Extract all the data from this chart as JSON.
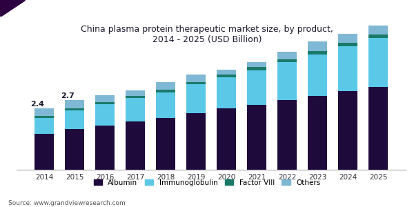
{
  "title": "China plasma protein therapeutic market size, by product,\n2014 - 2025 (USD Billion)",
  "years": [
    2014,
    2015,
    2016,
    2017,
    2018,
    2019,
    2020,
    2021,
    2022,
    2023,
    2024,
    2025
  ],
  "albumin": [
    1.4,
    1.58,
    1.72,
    1.88,
    2.02,
    2.2,
    2.38,
    2.52,
    2.7,
    2.88,
    3.05,
    3.22
  ],
  "immunoglobulin": [
    0.62,
    0.72,
    0.82,
    0.9,
    1.0,
    1.12,
    1.22,
    1.35,
    1.48,
    1.6,
    1.75,
    1.9
  ],
  "factor_viii": [
    0.07,
    0.08,
    0.08,
    0.09,
    0.09,
    0.1,
    0.11,
    0.12,
    0.12,
    0.13,
    0.14,
    0.15
  ],
  "others": [
    0.31,
    0.32,
    0.28,
    0.23,
    0.29,
    0.28,
    0.19,
    0.21,
    0.3,
    0.39,
    0.36,
    0.33
  ],
  "colors": {
    "albumin": "#1f0a3c",
    "immunoglobulin": "#5bc8e8",
    "factor_viii": "#1a7a6a",
    "others": "#7eb8d4"
  },
  "annotations": [
    {
      "year": 2014,
      "text": "2.4"
    },
    {
      "year": 2015,
      "text": "2.7"
    }
  ],
  "legend_labels": [
    "Albumin",
    "Immunoglobulin",
    "Factor VIII",
    "Others"
  ],
  "source": "Source: www.grandviewresearch.com",
  "bg_color": "#ffffff",
  "plot_bg_color": "#ffffff",
  "title_color": "#1a1a2e",
  "ylim": [
    0,
    5.8
  ],
  "bar_width": 0.65,
  "header_color": "#5c1a6b",
  "header_triangle_color": "#2d0040"
}
